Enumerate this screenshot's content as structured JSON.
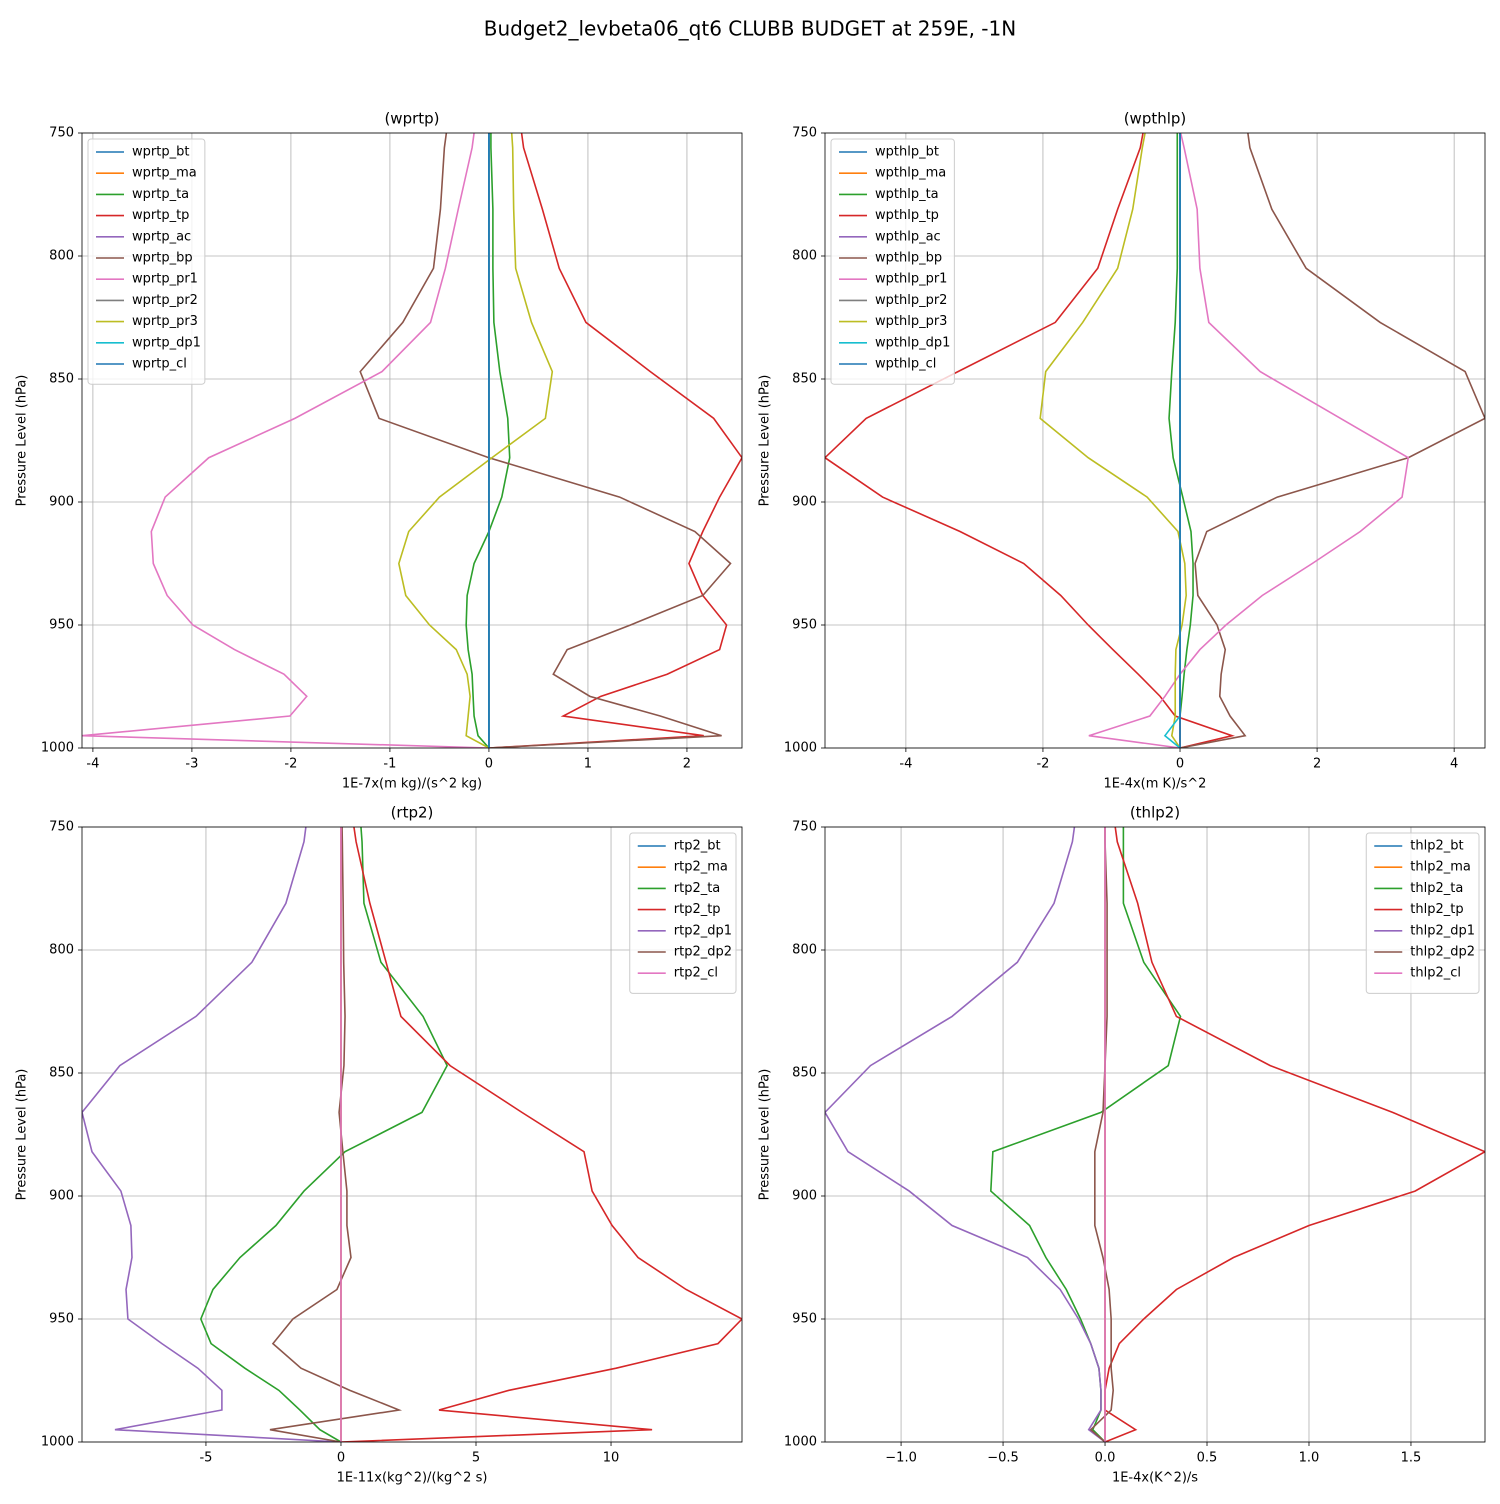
{
  "title": "Budget2_levbeta06_qt6 CLUBB BUDGET at 259E, -1N",
  "chart_data": [
    {
      "type": "line",
      "title": "(wprtp)",
      "xlabel": "1E-7x(m kg)/(s^2 kg)",
      "ylabel": "Pressure Level (hPa)",
      "y": [
        750,
        756,
        781,
        805,
        827,
        847,
        866,
        882,
        898,
        912,
        925,
        938,
        950,
        960,
        970,
        979,
        987,
        995,
        1000
      ],
      "xlim": [
        -4.11,
        2.556
      ],
      "ylim": [
        1000,
        750
      ],
      "xticks": [
        -4,
        -3,
        -2,
        -1,
        0,
        1,
        2
      ],
      "yticks": [
        750,
        800,
        850,
        900,
        950,
        1000
      ],
      "grid": true,
      "legend": "upper left",
      "series": [
        {
          "name": "wprtp_bt",
          "color": "#1f77b4",
          "values": [
            0,
            0,
            0,
            0,
            0,
            0,
            0,
            0,
            0,
            0,
            0,
            0,
            0,
            0,
            0,
            0,
            0,
            0,
            0
          ]
        },
        {
          "name": "wprtp_ma",
          "color": "#ff7f0e",
          "values": [
            0,
            0,
            0,
            0,
            0,
            0,
            0,
            0,
            0,
            0,
            0,
            0,
            0,
            0,
            0,
            0,
            0,
            0,
            0
          ]
        },
        {
          "name": "wprtp_ta",
          "color": "#2ca02c",
          "values": [
            0.02,
            0.02,
            0.04,
            0.04,
            0.05,
            0.11,
            0.19,
            0.21,
            0.13,
            0,
            -0.15,
            -0.22,
            -0.23,
            -0.21,
            -0.17,
            -0.16,
            -0.15,
            -0.11,
            0
          ]
        },
        {
          "name": "wprtp_tp",
          "color": "#d62728",
          "values": [
            0.33,
            0.35,
            0.54,
            0.71,
            0.98,
            1.63,
            2.27,
            2.556,
            2.33,
            2.16,
            2.02,
            2.16,
            2.4,
            2.33,
            1.8,
            1.13,
            0.75,
            2.17,
            0
          ]
        },
        {
          "name": "wprtp_ac",
          "color": "#9467bd",
          "values": [
            0,
            0,
            0,
            0,
            0,
            0,
            0,
            0,
            0,
            0,
            0,
            0,
            0,
            0,
            0,
            0,
            0,
            0,
            0
          ]
        },
        {
          "name": "wprtp_bp",
          "color": "#8c564b",
          "values": [
            -0.43,
            -0.45,
            -0.49,
            -0.56,
            -0.87,
            -1.3,
            -1.11,
            0,
            1.32,
            2.08,
            2.44,
            2.16,
            1.43,
            0.79,
            0.65,
            1.02,
            1.73,
            2.35,
            0
          ]
        },
        {
          "name": "wprtp_pr1",
          "color": "#e377c2",
          "values": [
            -0.15,
            -0.17,
            -0.31,
            -0.44,
            -0.59,
            -1.08,
            -1.96,
            -2.83,
            -3.27,
            -3.41,
            -3.39,
            -3.25,
            -2.99,
            -2.57,
            -2.07,
            -1.84,
            -2.01,
            -4.11,
            0
          ]
        },
        {
          "name": "wprtp_pr2",
          "color": "#7f7f7f",
          "values": [
            0,
            0,
            0,
            0,
            0,
            0,
            0,
            0,
            0,
            0,
            0,
            0,
            0,
            0,
            0,
            0,
            0,
            0,
            0
          ]
        },
        {
          "name": "wprtp_pr3",
          "color": "#bcbd22",
          "values": [
            0.23,
            0.24,
            0.25,
            0.27,
            0.43,
            0.64,
            0.57,
            0.03,
            -0.5,
            -0.81,
            -0.91,
            -0.84,
            -0.6,
            -0.33,
            -0.22,
            -0.19,
            -0.21,
            -0.23,
            0
          ]
        },
        {
          "name": "wprtp_dp1",
          "color": "#17becf",
          "values": [
            0,
            0,
            0,
            0,
            0,
            0,
            0,
            0,
            0,
            0,
            0,
            0,
            0,
            0,
            0,
            0,
            0,
            0,
            0
          ]
        },
        {
          "name": "wprtp_cl",
          "color": "#1f77b4",
          "values": [
            0,
            0,
            0,
            0,
            0,
            0,
            0,
            0,
            0,
            0,
            0,
            0,
            0,
            0,
            0,
            0,
            0,
            0,
            0
          ]
        }
      ]
    },
    {
      "type": "line",
      "title": "(wpthlp)",
      "xlabel": "1E-4x(m K)/s^2",
      "ylabel": "Pressure Level (hPa)",
      "y": [
        750,
        756,
        781,
        805,
        827,
        847,
        866,
        882,
        898,
        912,
        925,
        938,
        950,
        960,
        970,
        979,
        987,
        995,
        1000
      ],
      "xlim": [
        -5.18,
        4.45
      ],
      "ylim": [
        1000,
        750
      ],
      "xticks": [
        -4,
        -2,
        0,
        2,
        4
      ],
      "yticks": [
        750,
        800,
        850,
        900,
        950,
        1000
      ],
      "grid": true,
      "legend": "upper left",
      "series": [
        {
          "name": "wpthlp_bt",
          "color": "#1f77b4",
          "values": [
            0,
            0,
            0,
            0,
            0,
            0,
            0,
            0,
            0,
            0,
            0,
            0,
            0,
            0,
            0,
            0,
            0,
            0,
            0
          ]
        },
        {
          "name": "wpthlp_ma",
          "color": "#ff7f0e",
          "values": [
            0,
            0,
            0,
            0,
            0,
            0,
            0,
            0,
            0,
            0,
            0,
            0,
            0,
            0,
            0,
            0,
            0,
            0,
            0
          ]
        },
        {
          "name": "wpthlp_ta",
          "color": "#2ca02c",
          "values": [
            -0.04,
            -0.04,
            -0.04,
            -0.04,
            -0.07,
            -0.12,
            -0.16,
            -0.1,
            0.04,
            0.16,
            0.19,
            0.19,
            0.15,
            0.1,
            0.06,
            0.03,
            0,
            0,
            0
          ]
        },
        {
          "name": "wpthlp_tp",
          "color": "#d62728",
          "values": [
            -0.54,
            -0.58,
            -0.91,
            -1.2,
            -1.82,
            -3.24,
            -4.58,
            -5.18,
            -4.34,
            -3.21,
            -2.28,
            -1.74,
            -1.34,
            -0.98,
            -0.61,
            -0.29,
            -0.07,
            0.76,
            0
          ]
        },
        {
          "name": "wpthlp_ac",
          "color": "#9467bd",
          "values": [
            0,
            0,
            0,
            0,
            0,
            0,
            0,
            0,
            0,
            0,
            0,
            0,
            0,
            0,
            0,
            0,
            0,
            0,
            0
          ]
        },
        {
          "name": "wpthlp_bp",
          "color": "#8c564b",
          "values": [
            0.99,
            1.02,
            1.34,
            1.84,
            2.92,
            4.16,
            4.45,
            3.33,
            1.42,
            0.39,
            0.22,
            0.26,
            0.54,
            0.66,
            0.6,
            0.58,
            0.73,
            0.95,
            0
          ]
        },
        {
          "name": "wpthlp_pr1",
          "color": "#e377c2",
          "values": [
            0.01,
            0.06,
            0.25,
            0.29,
            0.42,
            1.17,
            2.34,
            3.33,
            3.24,
            2.63,
            1.93,
            1.2,
            0.67,
            0.29,
            0,
            -0.22,
            -0.44,
            -1.33,
            0
          ]
        },
        {
          "name": "wpthlp_pr2",
          "color": "#7f7f7f",
          "values": [
            0,
            0,
            0,
            0,
            0,
            0,
            0,
            0,
            0,
            0,
            0,
            0,
            0,
            0,
            0,
            0,
            0,
            0,
            0
          ]
        },
        {
          "name": "wpthlp_pr3",
          "color": "#bcbd22",
          "values": [
            -0.51,
            -0.55,
            -0.69,
            -0.91,
            -1.42,
            -1.96,
            -2.04,
            -1.34,
            -0.48,
            -0.03,
            0.07,
            0.09,
            0.03,
            -0.06,
            -0.07,
            -0.07,
            -0.07,
            -0.12,
            0
          ]
        },
        {
          "name": "wpthlp_dp1",
          "color": "#17becf",
          "values": [
            0,
            0,
            0,
            0,
            0,
            0,
            0,
            0,
            0,
            0,
            0,
            0,
            0,
            0,
            0,
            0,
            0,
            -0.22,
            0
          ]
        },
        {
          "name": "wpthlp_cl",
          "color": "#1f77b4",
          "values": [
            0,
            0,
            0,
            0,
            0,
            0,
            0,
            0,
            0,
            0,
            0,
            0,
            0,
            0,
            0,
            0,
            0,
            0,
            0
          ]
        }
      ]
    },
    {
      "type": "line",
      "title": "(rtp2)",
      "xlabel": "1E-11x(kg^2)/(kg^2 s)",
      "ylabel": "Pressure Level (hPa)",
      "y": [
        750,
        756,
        781,
        805,
        827,
        847,
        866,
        882,
        898,
        912,
        925,
        938,
        950,
        960,
        970,
        979,
        987,
        995,
        1000
      ],
      "xlim": [
        -9.59,
        14.85
      ],
      "ylim": [
        1000,
        750
      ],
      "xticks": [
        -5,
        0,
        5,
        10
      ],
      "yticks": [
        750,
        800,
        850,
        900,
        950,
        1000
      ],
      "grid": true,
      "legend": "upper right",
      "series": [
        {
          "name": "rtp2_bt",
          "color": "#1f77b4",
          "values": [
            0,
            0,
            0,
            0,
            0,
            0,
            0,
            0,
            0,
            0,
            0,
            0,
            0,
            0,
            0,
            0,
            0,
            0,
            0
          ]
        },
        {
          "name": "rtp2_ma",
          "color": "#ff7f0e",
          "values": [
            0,
            0,
            0,
            0,
            0,
            0,
            0,
            0,
            0,
            0,
            0,
            0,
            0,
            0,
            0,
            0,
            0,
            0,
            0
          ]
        },
        {
          "name": "rtp2_ta",
          "color": "#2ca02c",
          "values": [
            0.74,
            0.78,
            0.85,
            1.48,
            3.04,
            3.93,
            3.0,
            0.15,
            -1.37,
            -2.41,
            -3.74,
            -4.74,
            -5.19,
            -4.81,
            -3.56,
            -2.3,
            -1.52,
            -0.78,
            0
          ]
        },
        {
          "name": "rtp2_tp",
          "color": "#d62728",
          "values": [
            0.48,
            0.56,
            1.07,
            1.67,
            2.22,
            4.04,
            6.7,
            9.0,
            9.3,
            10.04,
            11.0,
            12.78,
            14.85,
            13.96,
            10.19,
            6.22,
            3.63,
            11.52,
            0
          ]
        },
        {
          "name": "rtp2_dp1",
          "color": "#9467bd",
          "values": [
            -1.3,
            -1.37,
            -2.04,
            -3.3,
            -5.37,
            -8.19,
            -9.59,
            -9.22,
            -8.15,
            -7.78,
            -7.74,
            -7.96,
            -7.89,
            -6.63,
            -5.3,
            -4.41,
            -4.41,
            -8.37,
            0
          ]
        },
        {
          "name": "rtp2_dp2",
          "color": "#8c564b",
          "values": [
            0.04,
            0.05,
            0.08,
            0.1,
            0.15,
            0.11,
            -0.07,
            0.07,
            0.22,
            0.22,
            0.37,
            -0.15,
            -1.78,
            -2.52,
            -1.48,
            0.33,
            2.15,
            -2.63,
            0
          ]
        },
        {
          "name": "rtp2_cl",
          "color": "#e377c2",
          "values": [
            0,
            0,
            0,
            0,
            0,
            0,
            0,
            0,
            0,
            0,
            0,
            0,
            0,
            0,
            0,
            0,
            0,
            0,
            0
          ]
        }
      ]
    },
    {
      "type": "line",
      "title": "(thlp2)",
      "xlabel": "1E-4x(K^2)/s",
      "ylabel": "Pressure Level (hPa)",
      "y": [
        750,
        756,
        781,
        805,
        827,
        847,
        866,
        882,
        898,
        912,
        925,
        938,
        950,
        960,
        970,
        979,
        987,
        995,
        1000
      ],
      "xlim": [
        -1.373,
        1.863
      ],
      "ylim": [
        1000,
        750
      ],
      "xticks": [
        {
          "value": -1,
          "label": "−1.0"
        },
        {
          "value": -0.5,
          "label": "−0.5"
        },
        {
          "value": 0,
          "label": "0.0"
        },
        0.5,
        {
          "value": 1,
          "label": "1.0"
        },
        1.5
      ],
      "yticks": [
        750,
        800,
        850,
        900,
        950,
        1000
      ],
      "grid": true,
      "legend": "upper right",
      "series": [
        {
          "name": "thlp2_bt",
          "color": "#1f77b4",
          "values": [
            0,
            0,
            0,
            0,
            0,
            0,
            0,
            0,
            0,
            0,
            0,
            0,
            0,
            0,
            0,
            0,
            0,
            0,
            0
          ]
        },
        {
          "name": "thlp2_ma",
          "color": "#ff7f0e",
          "values": [
            0,
            0,
            0,
            0,
            0,
            0,
            0,
            0,
            0,
            0,
            0,
            0,
            0,
            0,
            0,
            0,
            0,
            0,
            0
          ]
        },
        {
          "name": "thlp2_ta",
          "color": "#2ca02c",
          "values": [
            0.09,
            0.09,
            0.09,
            0.19,
            0.37,
            0.31,
            -0.02,
            -0.55,
            -0.56,
            -0.37,
            -0.29,
            -0.19,
            -0.12,
            -0.07,
            -0.03,
            -0.02,
            -0.02,
            -0.06,
            0
          ]
        },
        {
          "name": "thlp2_tp",
          "color": "#d62728",
          "values": [
            0.05,
            0.06,
            0.16,
            0.23,
            0.35,
            0.81,
            1.41,
            1.863,
            1.52,
            1.0,
            0.63,
            0.35,
            0.19,
            0.07,
            0.02,
            0,
            0,
            0.15,
            0
          ]
        },
        {
          "name": "thlp2_dp1",
          "color": "#9467bd",
          "values": [
            -0.15,
            -0.16,
            -0.25,
            -0.43,
            -0.75,
            -1.15,
            -1.373,
            -1.26,
            -0.96,
            -0.75,
            -0.38,
            -0.22,
            -0.13,
            -0.07,
            -0.03,
            -0.02,
            -0.02,
            -0.08,
            0
          ]
        },
        {
          "name": "thlp2_dp2",
          "color": "#8c564b",
          "values": [
            0,
            0,
            0.01,
            0.01,
            0.01,
            0,
            -0.01,
            -0.05,
            -0.05,
            -0.05,
            -0.01,
            0.02,
            0.03,
            0.03,
            0.03,
            0.04,
            0.03,
            -0.07,
            0
          ]
        },
        {
          "name": "thlp2_cl",
          "color": "#e377c2",
          "values": [
            0,
            0,
            0,
            0,
            0,
            0,
            0,
            0,
            0,
            0,
            0,
            0,
            0,
            0,
            0,
            0,
            0,
            0,
            0
          ]
        }
      ]
    }
  ]
}
